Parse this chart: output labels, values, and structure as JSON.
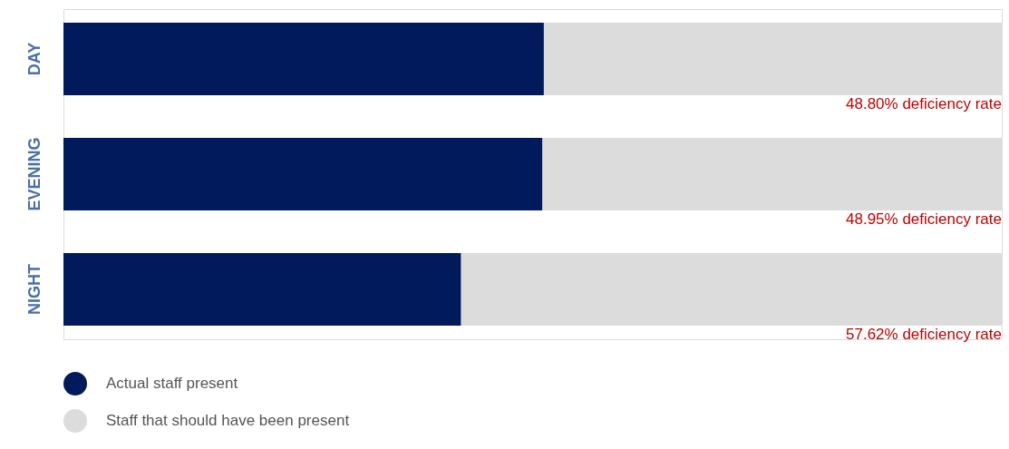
{
  "chart_data": {
    "type": "bar",
    "orientation": "horizontal",
    "stacked": true,
    "categories": [
      "DAY",
      "EVENING",
      "NIGHT"
    ],
    "series": [
      {
        "name": "Actual staff present",
        "color": "#001a5c",
        "values": [
          51.2,
          51.05,
          42.38
        ]
      },
      {
        "name": "Staff that should have been present",
        "color": "#dcdcdc",
        "values": [
          48.8,
          48.95,
          57.62
        ],
        "value_labels": [
          "48.80% deficiency rate",
          "48.95% deficiency rate",
          "57.62% deficiency rate"
        ]
      }
    ],
    "xlim": [
      0,
      100
    ],
    "tick_labels": "y",
    "legend": "bottom left"
  }
}
